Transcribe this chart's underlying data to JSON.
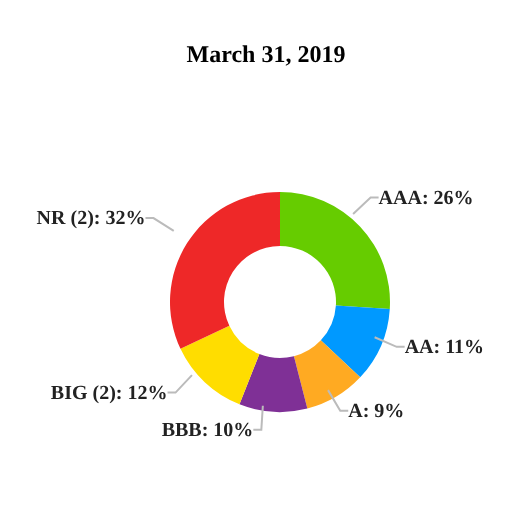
{
  "chart_data": {
    "type": "donut",
    "title": "March 31, 2019",
    "categories": [
      "AAA",
      "AA",
      "A",
      "BBB",
      "BIG (2)",
      "NR (2)"
    ],
    "values": [
      26,
      11,
      9,
      10,
      12,
      32
    ],
    "colors": [
      "#66cc00",
      "#0099ff",
      "#ffaa22",
      "#7f3096",
      "#ffdd00",
      "#ee2828"
    ],
    "value_labels": [
      "26%",
      "11%",
      "9%",
      "10%",
      "12%",
      "32%"
    ],
    "legend": false
  }
}
